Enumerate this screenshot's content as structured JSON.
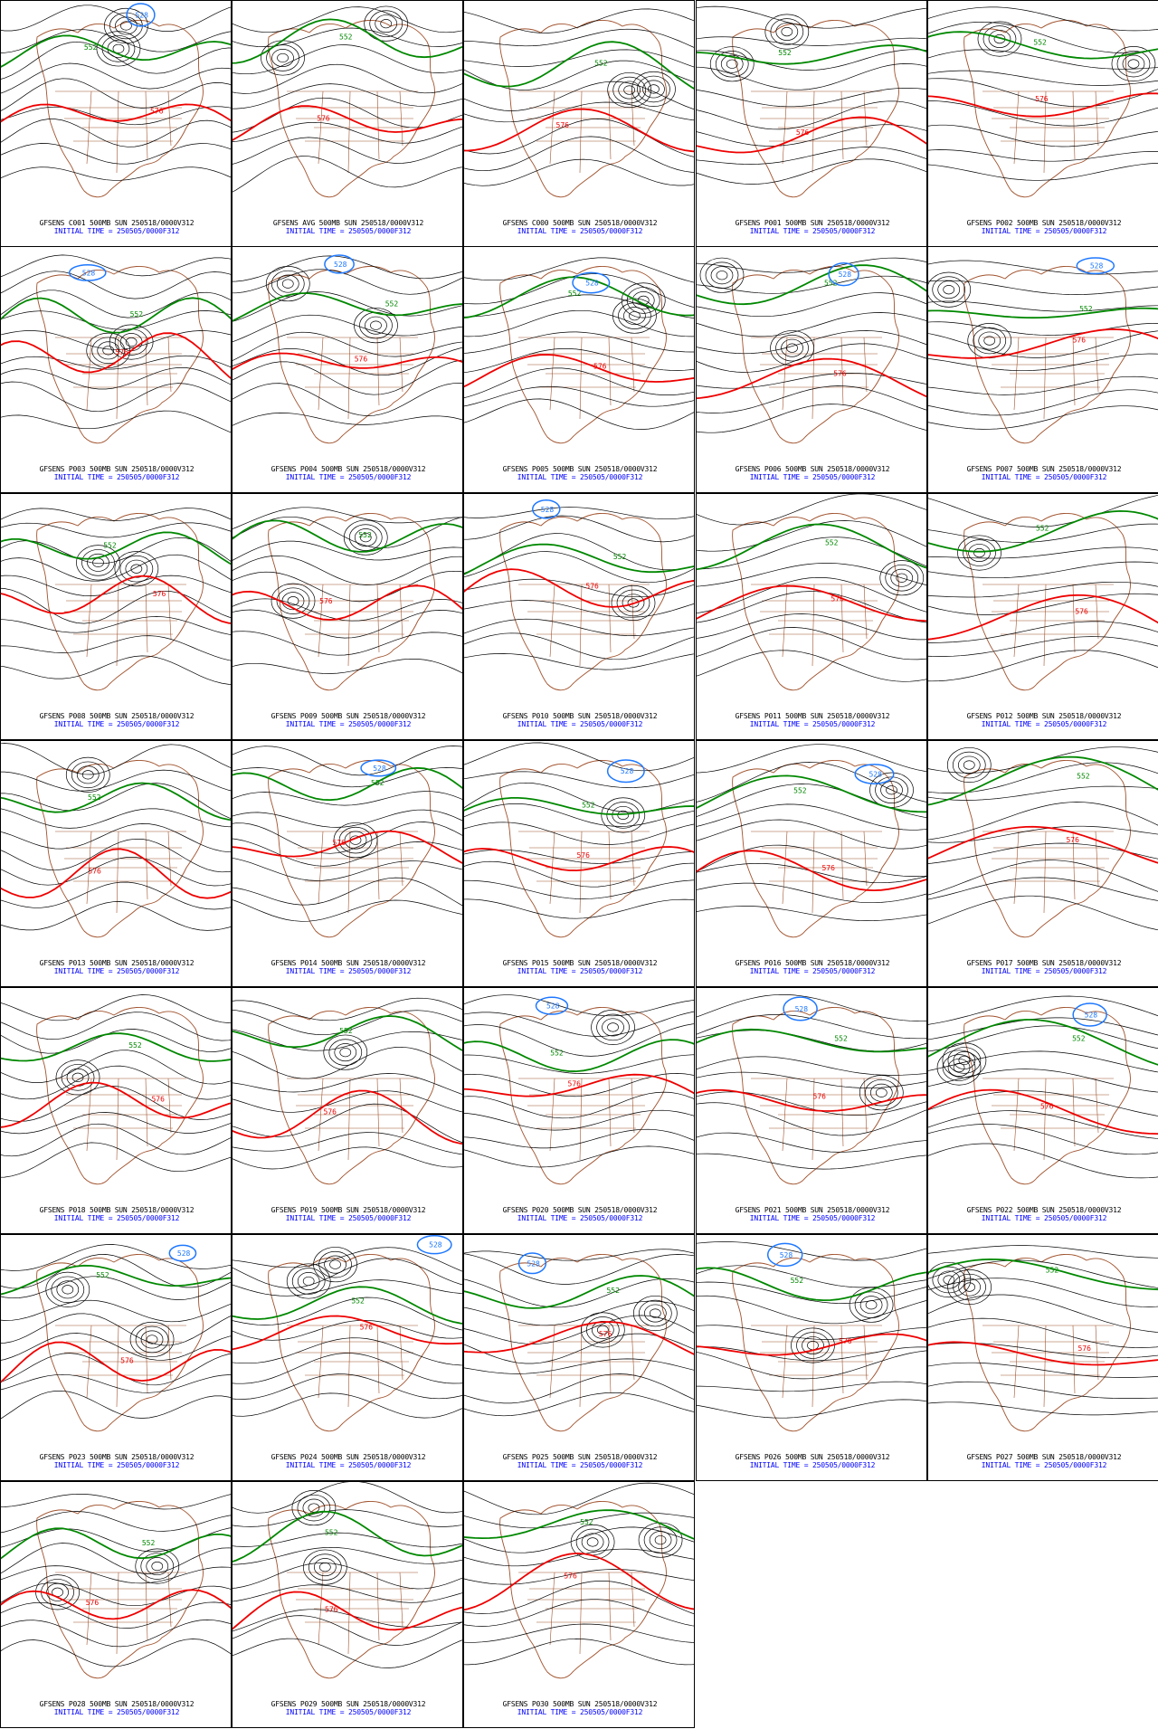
{
  "colors": {
    "height_contour": "#000000",
    "line_552": "#008800",
    "line_576": "#ee0000",
    "line_528": "#1e78ff",
    "coastline": "#a0522d"
  },
  "panels": [
    {
      "member": "GFSENS C001",
      "title": "GFSENS C001 500MB SUN 250518/0000V312",
      "init": "INITIAL TIME = 250505/0000F312"
    },
    {
      "member": "GFSENS AVG",
      "title": "GFSENS AVG 500MB SUN 250518/0000V312",
      "init": "INITIAL TIME = 250505/0000F312"
    },
    {
      "member": "GFSENS C000",
      "title": "GFSENS C000 500MB SUN 250518/0000V312",
      "init": "INITIAL TIME = 250505/0000F312"
    },
    {
      "member": "GFSENS P001",
      "title": "GFSENS P001 500MB SUN 250518/0000V312",
      "init": "INITIAL TIME = 250505/0000F312"
    },
    {
      "member": "GFSENS P002",
      "title": "GFSENS P002 500MB SUN 250518/0000V312",
      "init": "INITIAL TIME = 250505/0000F312"
    },
    {
      "member": "GFSENS P003",
      "title": "GFSENS P003 500MB SUN 250518/0000V312",
      "init": "INITIAL TIME = 250505/0000F312"
    },
    {
      "member": "GFSENS P004",
      "title": "GFSENS P004 500MB SUN 250518/0000V312",
      "init": "INITIAL TIME = 250505/0000F312"
    },
    {
      "member": "GFSENS P005",
      "title": "GFSENS P005 500MB SUN 250518/0000V312",
      "init": "INITIAL TIME = 250505/0000F312"
    },
    {
      "member": "GFSENS P006",
      "title": "GFSENS P006 500MB SUN 250518/0000V312",
      "init": "INITIAL TIME = 250505/0000F312"
    },
    {
      "member": "GFSENS P007",
      "title": "GFSENS P007 500MB SUN 250518/0000V312",
      "init": "INITIAL TIME = 250505/0000F312"
    },
    {
      "member": "GFSENS P008",
      "title": "GFSENS P008 500MB SUN 250518/0000V312",
      "init": "INITIAL TIME = 250505/0000F312"
    },
    {
      "member": "GFSENS P009",
      "title": "GFSENS P009 500MB SUN 250518/0000V312",
      "init": "INITIAL TIME = 250505/0000F312"
    },
    {
      "member": "GFSENS P010",
      "title": "GFSENS P010 500MB SUN 250518/0000V312",
      "init": "INITIAL TIME = 250505/0000F312"
    },
    {
      "member": "GFSENS P011",
      "title": "GFSENS P011 500MB SUN 250518/0000V312",
      "init": "INITIAL TIME = 250505/0000F312"
    },
    {
      "member": "GFSENS P012",
      "title": "GFSENS P012 500MB SUN 250518/0000V312",
      "init": "INITIAL TIME = 250505/0000F312"
    },
    {
      "member": "GFSENS P013",
      "title": "GFSENS P013 500MB SUN 250518/0000V312",
      "init": "INITIAL TIME = 250505/0000F312"
    },
    {
      "member": "GFSENS P014",
      "title": "GFSENS P014 500MB SUN 250518/0000V312",
      "init": "INITIAL TIME = 250505/0000F312"
    },
    {
      "member": "GFSENS P015",
      "title": "GFSENS P015 500MB SUN 250518/0000V312",
      "init": "INITIAL TIME = 250505/0000F312"
    },
    {
      "member": "GFSENS P016",
      "title": "GFSENS P016 500MB SUN 250518/0000V312",
      "init": "INITIAL TIME = 250505/0000F312"
    },
    {
      "member": "GFSENS P017",
      "title": "GFSENS P017 500MB SUN 250518/0000V312",
      "init": "INITIAL TIME = 250505/0000F312"
    },
    {
      "member": "GFSENS P018",
      "title": "GFSENS P018 500MB SUN 250518/0000V312",
      "init": "INITIAL TIME = 250505/0000F312"
    },
    {
      "member": "GFSENS P019",
      "title": "GFSENS P019 500MB SUN 250518/0000V312",
      "init": "INITIAL TIME = 250505/0000F312"
    },
    {
      "member": "GFSENS P020",
      "title": "GFSENS P020 500MB SUN 250518/0000V312",
      "init": "INITIAL TIME = 250505/0000F312"
    },
    {
      "member": "GFSENS P021",
      "title": "GFSENS P021 500MB SUN 250518/0000V312",
      "init": "INITIAL TIME = 250505/0000F312"
    },
    {
      "member": "GFSENS P022",
      "title": "GFSENS P022 500MB SUN 250518/0000V312",
      "init": "INITIAL TIME = 250505/0000F312"
    },
    {
      "member": "GFSENS P023",
      "title": "GFSENS P023 500MB SUN 250518/0000V312",
      "init": "INITIAL TIME = 250505/0000F312"
    },
    {
      "member": "GFSENS P024",
      "title": "GFSENS P024 500MB SUN 250518/0000V312",
      "init": "INITIAL TIME = 250505/0000F312"
    },
    {
      "member": "GFSENS P025",
      "title": "GFSENS P025 500MB SUN 250518/0000V312",
      "init": "INITIAL TIME = 250505/0000F312"
    },
    {
      "member": "GFSENS P026",
      "title": "GFSENS P026 500MB SUN 250518/0000V312",
      "init": "INITIAL TIME = 250505/0000F312"
    },
    {
      "member": "GFSENS P027",
      "title": "GFSENS P027 500MB SUN 250518/0000V312",
      "init": "INITIAL TIME = 250505/0000F312"
    },
    {
      "member": "GFSENS P028",
      "title": "GFSENS P028 500MB SUN 250518/0000V312",
      "init": "INITIAL TIME = 250505/0000F312"
    },
    {
      "member": "GFSENS P029",
      "title": "GFSENS P029 500MB SUN 250518/0000V312",
      "init": "INITIAL TIME = 250505/0000F312"
    },
    {
      "member": "GFSENS P030",
      "title": "GFSENS P030 500MB SUN 250518/0000V312",
      "init": "INITIAL TIME = 250505/0000F312"
    }
  ],
  "contour_labels": {
    "green": "552",
    "red": "576",
    "blue": "528"
  }
}
